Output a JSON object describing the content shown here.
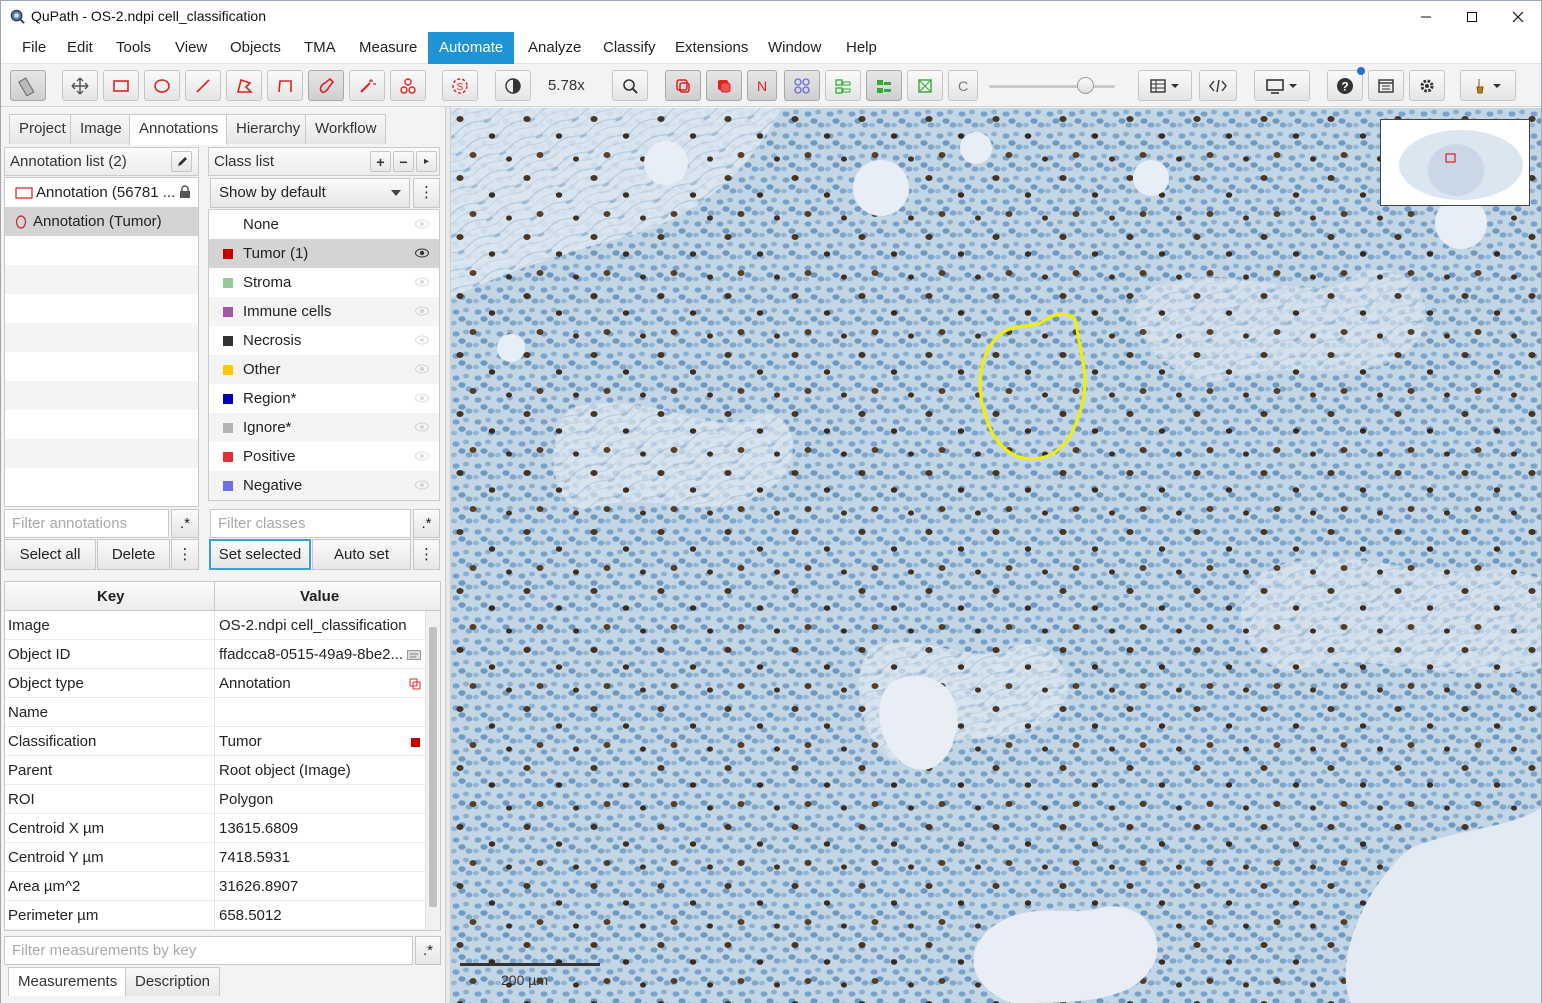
{
  "window": {
    "title": "QuPath - OS-2.ndpi cell_classification",
    "minimize_glyph": "—",
    "maximize_glyph": "☐",
    "close_glyph": "✕"
  },
  "menu": [
    "File",
    "Edit",
    "Tools",
    "View",
    "Objects",
    "TMA",
    "Measure",
    "Automate",
    "Analyze",
    "Classify",
    "Extensions",
    "Window",
    "Help"
  ],
  "menu_active": "Automate",
  "toolbar": {
    "zoom": "5.78x",
    "icons": [
      "measure-tool-icon",
      "move-tool-icon",
      "rectangle-tool-icon",
      "ellipse-tool-icon",
      "line-tool-icon",
      "polygon-tool-icon",
      "polyline-tool-icon",
      "brush-tool-icon",
      "wand-tool-icon",
      "points-tool-icon",
      "selection-mode-icon",
      "brightness-contrast-icon",
      "zoom-to-fit-icon",
      "show-annotations-icon",
      "fill-annotations-icon",
      "show-names-icon",
      "show-tma-grid-icon",
      "show-detections-icon",
      "fill-detections-icon",
      "show-connections-icon",
      "show-pixel-classification-icon",
      "opacity-slider",
      "measurement-table-icon",
      "script-editor-icon",
      "display-settings-icon",
      "help-icon",
      "log-icon",
      "preferences-icon",
      "extensions-icon"
    ],
    "accent": "#1f93d6"
  },
  "left_tabs": [
    "Project",
    "Image",
    "Annotations",
    "Hierarchy",
    "Workflow"
  ],
  "left_tab_selected": "Annotations",
  "annotation_list": {
    "header": "Annotation list (2)",
    "items": [
      {
        "label": "Annotation (56781 ...",
        "locked": true
      },
      {
        "label": "Annotation (Tumor)",
        "locked": false
      }
    ],
    "filter_placeholder": "Filter annotations",
    "filter_regex": ".*",
    "select_all": "Select all",
    "delete": "Delete",
    "more": "⋮"
  },
  "class_list": {
    "header": "Class list",
    "add": "+",
    "remove": "−",
    "more": "▸",
    "show_by_default": "Show by default",
    "items": [
      {
        "name": "None",
        "color": null
      },
      {
        "name": "Tumor (1)",
        "color": "#c80000"
      },
      {
        "name": "Stroma",
        "color": "#96c896"
      },
      {
        "name": "Immune cells",
        "color": "#a05aa0"
      },
      {
        "name": "Necrosis",
        "color": "#323232"
      },
      {
        "name": "Other",
        "color": "#ffc800"
      },
      {
        "name": "Region*",
        "color": "#0000b4"
      },
      {
        "name": "Ignore*",
        "color": "#b4b4b4"
      },
      {
        "name": "Positive",
        "color": "#e03232"
      },
      {
        "name": "Negative",
        "color": "#7070e0"
      }
    ],
    "selected_index": 1,
    "filter_placeholder": "Filter classes",
    "filter_regex": ".*",
    "set_selected": "Set selected",
    "auto_set": "Auto set",
    "overflow": "⋮"
  },
  "properties": {
    "col_key": "Key",
    "col_value": "Value",
    "rows": [
      {
        "key": "Image",
        "value": "OS-2.ndpi cell_classification"
      },
      {
        "key": "Object ID",
        "value": "ffadcca8-0515-49a9-8be2..."
      },
      {
        "key": "Object type",
        "value": "Annotation"
      },
      {
        "key": "Name",
        "value": ""
      },
      {
        "key": "Classification",
        "value": "Tumor"
      },
      {
        "key": "Parent",
        "value": "Root object (Image)"
      },
      {
        "key": "ROI",
        "value": "Polygon"
      },
      {
        "key": "Centroid X µm",
        "value": "13615.6809"
      },
      {
        "key": "Centroid Y µm",
        "value": "7418.5931"
      },
      {
        "key": "Area µm^2",
        "value": "31626.8907"
      },
      {
        "key": "Perimeter µm",
        "value": "658.5012"
      }
    ],
    "filter_placeholder": "Filter measurements by key",
    "filter_regex": ".*",
    "bottom_tabs": [
      "Measurements",
      "Description"
    ]
  },
  "viewer": {
    "scale_label": "200 µm",
    "annotation_color": "#f0f000"
  }
}
